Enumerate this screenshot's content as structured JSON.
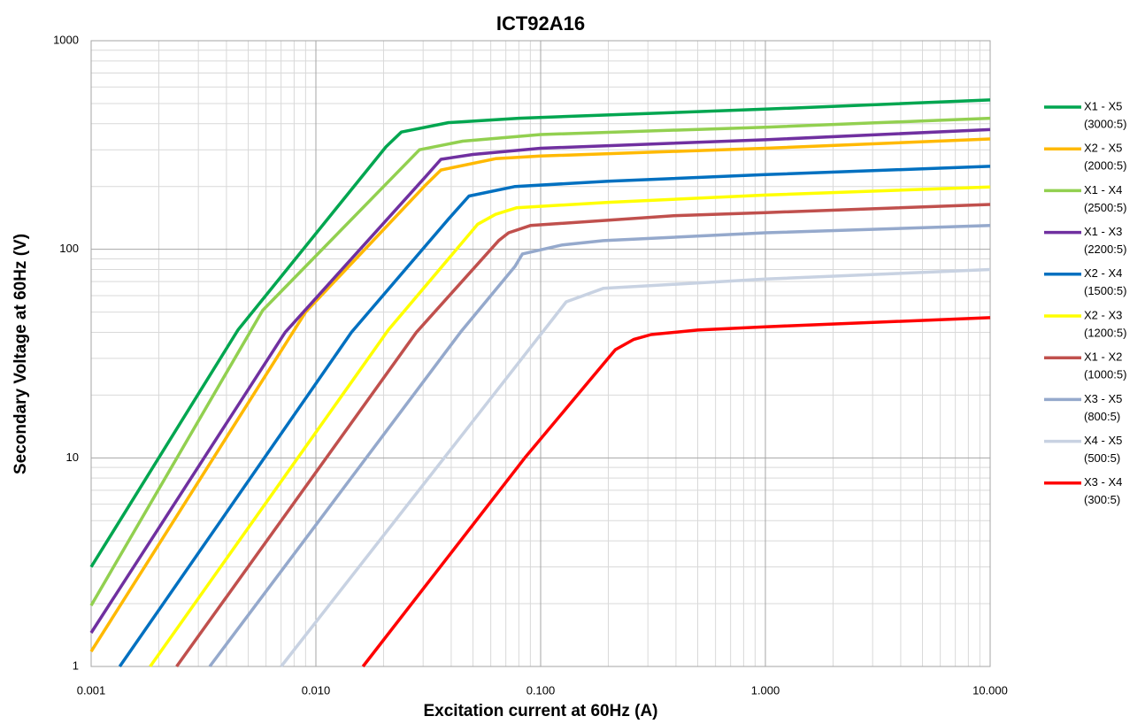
{
  "chart_data": {
    "type": "line",
    "title": "ICT92A16",
    "x_label": "Excitation current at 60Hz (A)",
    "y_label": "Secondary Voltage at 60Hz (V)",
    "xlog": true,
    "ylog": true,
    "grid": true,
    "minor_grid": true,
    "legend": "right",
    "xlim": [
      0.001,
      10
    ],
    "ylim": [
      1,
      1000
    ],
    "xticks": [
      {
        "value": 0.001,
        "label": "0.001"
      },
      {
        "value": 0.01,
        "label": "0.010"
      },
      {
        "value": 0.1,
        "label": "0.100"
      },
      {
        "value": 1,
        "label": "1.000"
      },
      {
        "value": 10,
        "label": "10.000"
      }
    ],
    "yticks": [
      1,
      10,
      100,
      1000
    ],
    "series": [
      {
        "name": "X1 - X5",
        "ratio": "(3000:5)",
        "color": "#00a650",
        "x": [
          0.001,
          0.0045,
          0.0205,
          0.024,
          0.039,
          0.08,
          1,
          10
        ],
        "values": [
          3,
          41,
          310,
          365,
          405,
          425,
          470,
          520
        ]
      },
      {
        "name": "X2 - X5",
        "ratio": "(2000:5)",
        "color": "#ffb900",
        "x": [
          0.001,
          0.009,
          0.031,
          0.036,
          0.063,
          0.1,
          1,
          10
        ],
        "values": [
          1.18,
          50,
          205,
          240,
          272,
          280,
          305,
          338
        ]
      },
      {
        "name": "X1 - X4",
        "ratio": "(2500:5)",
        "color": "#92d050",
        "x": [
          0.001,
          0.0058,
          0.0289,
          0.045,
          0.1,
          1,
          10
        ],
        "values": [
          1.96,
          51,
          300,
          330,
          355,
          385,
          425
        ]
      },
      {
        "name": "X1 - X3",
        "ratio": "(2200:5)",
        "color": "#7030a0",
        "x": [
          0.001,
          0.0073,
          0.031,
          0.036,
          0.05,
          0.1,
          1,
          10
        ],
        "values": [
          1.45,
          40,
          225,
          270,
          285,
          305,
          335,
          375
        ]
      },
      {
        "name": "X2 - X4",
        "ratio": "(1500:5)",
        "color": "#0070c0",
        "x": [
          0.00134,
          0.0144,
          0.039,
          0.048,
          0.077,
          0.2,
          1,
          10
        ],
        "values": [
          1,
          40,
          140,
          180,
          200,
          212,
          228,
          250
        ]
      },
      {
        "name": "X2 - X3",
        "ratio": "(1200:5)",
        "color": "#ffff00",
        "x": [
          0.00183,
          0.021,
          0.0525,
          0.063,
          0.078,
          0.2,
          1,
          10
        ],
        "values": [
          1,
          41,
          132,
          147,
          158,
          168,
          182,
          199
        ]
      },
      {
        "name": "X1 - X2",
        "ratio": "(1000:5)",
        "color": "#c0504d",
        "x": [
          0.0024,
          0.028,
          0.065,
          0.072,
          0.09,
          0.4,
          1,
          10
        ],
        "values": [
          1,
          40,
          110,
          120,
          130,
          145,
          150,
          164
        ]
      },
      {
        "name": "X3 - X5",
        "ratio": "(800:5)",
        "color": "#95a9cc",
        "x": [
          0.00337,
          0.044,
          0.077,
          0.083,
          0.125,
          0.19,
          1,
          10
        ],
        "values": [
          1,
          40,
          83,
          95,
          105,
          110,
          120,
          130
        ]
      },
      {
        "name": "X4 - X5",
        "ratio": "(500:5)",
        "color": "#c8d2e2",
        "x": [
          0.007,
          0.13,
          0.19,
          1,
          10
        ],
        "values": [
          1,
          56,
          65,
          72,
          80
        ]
      },
      {
        "name": "X3 - X4",
        "ratio": "(300:5)",
        "color": "#ff0000",
        "x": [
          0.0162,
          0.085,
          0.215,
          0.26,
          0.31,
          0.5,
          1,
          10
        ],
        "values": [
          1,
          10,
          33,
          37,
          39,
          41,
          42.5,
          47
        ]
      }
    ]
  }
}
